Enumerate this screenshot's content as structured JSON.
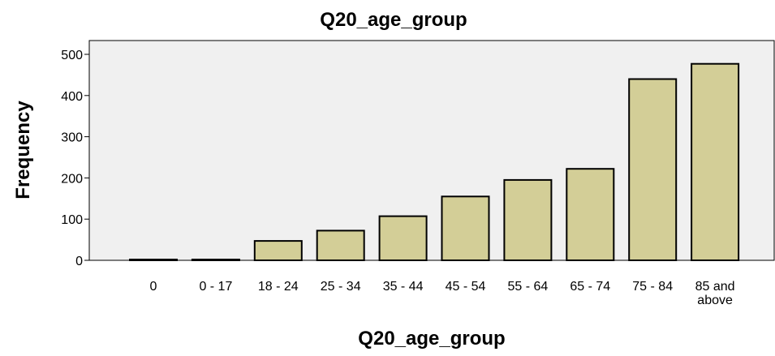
{
  "chart_data": {
    "type": "bar",
    "title": "Q20_age_group",
    "xlabel": "Q20_age_group",
    "ylabel": "Frequency",
    "categories": [
      "0",
      "0 - 17",
      "18 - 24",
      "25 - 34",
      "35 - 44",
      "45 - 54",
      "55 - 64",
      "65 - 74",
      "75 - 84",
      "85 and above"
    ],
    "values": [
      1,
      1,
      47,
      72,
      107,
      155,
      195,
      222,
      440,
      477
    ],
    "ylim": [
      0,
      525
    ],
    "yticks": [
      0,
      100,
      200,
      300,
      400,
      500
    ],
    "grid": false,
    "legend": "none",
    "colors": {
      "bar_fill": "#d3ce97",
      "bar_stroke": "#000000",
      "plot_background": "#f0f0f0"
    }
  }
}
